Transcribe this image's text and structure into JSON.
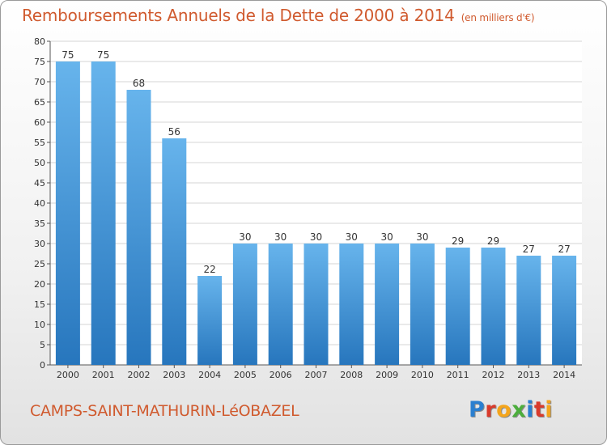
{
  "title": "Remboursements Annuels de la Dette de 2000 à 2014",
  "title_unit": "(en milliers d'€)",
  "commune": "CAMPS-SAINT-MATHURIN-LéOBAZEL",
  "logo": {
    "letters": [
      "P",
      "r",
      "o",
      "x",
      "i",
      "t",
      "i"
    ],
    "colors": [
      "#2a7fd0",
      "#d93b2c",
      "#f4a51c",
      "#4cae3c",
      "#2a7fd0",
      "#d93b2c",
      "#f4a51c"
    ]
  },
  "colors": {
    "bar": "#4a9fe0",
    "bar_light": "#67b4ec",
    "bar_dark": "#2776bd",
    "text": "#d05a2e",
    "grid": "#d5d5d5"
  },
  "chart_data": {
    "type": "bar",
    "categories": [
      "2000",
      "2001",
      "2002",
      "2003",
      "2004",
      "2005",
      "2006",
      "2007",
      "2008",
      "2009",
      "2010",
      "2011",
      "2012",
      "2013",
      "2014"
    ],
    "values": [
      75,
      75,
      68,
      56,
      22,
      30,
      30,
      30,
      30,
      30,
      30,
      29,
      29,
      27,
      27
    ],
    "title": "Remboursements Annuels de la Dette de 2000 à 2014",
    "ylim": [
      0,
      80
    ],
    "yticks": [
      0,
      5,
      10,
      15,
      20,
      25,
      30,
      35,
      40,
      45,
      50,
      55,
      60,
      65,
      70,
      75,
      80
    ],
    "grid": true,
    "legend": "none"
  }
}
